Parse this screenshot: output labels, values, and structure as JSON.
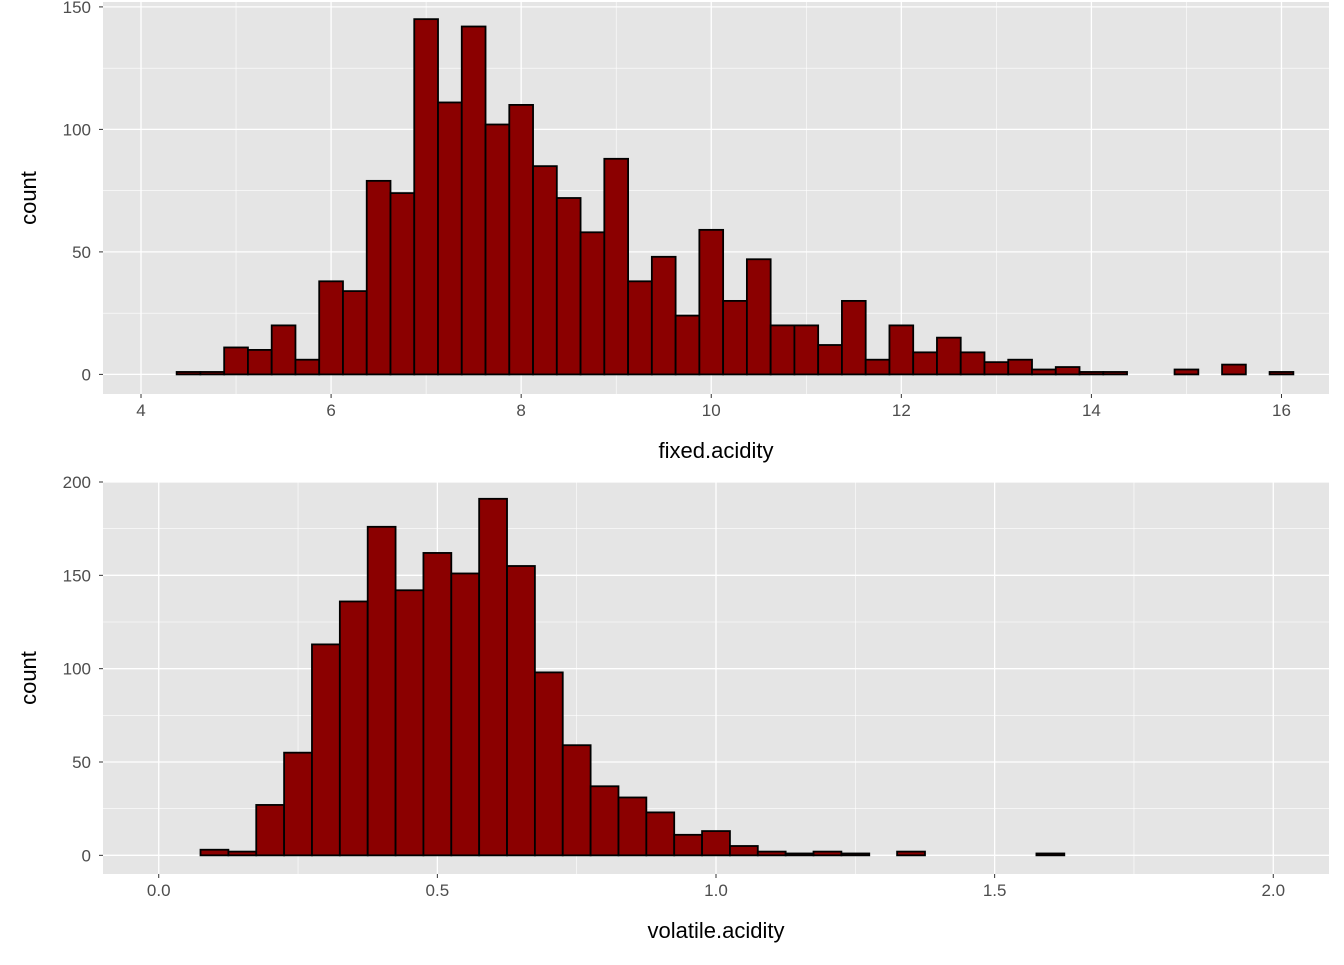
{
  "chart_data": [
    {
      "type": "bar",
      "title": "",
      "xlabel": "fixed.acidity",
      "ylabel": "count",
      "binwidth": 0.25,
      "bin_start": 4.375,
      "xlim": [
        3.6,
        16.5
      ],
      "ylim": [
        -8,
        152
      ],
      "xticks": [
        4,
        6,
        8,
        10,
        12,
        14,
        16
      ],
      "xtick_labels": [
        "4",
        "6",
        "8",
        "10",
        "12",
        "14",
        "16"
      ],
      "yticks": [
        0,
        50,
        100,
        150
      ],
      "ytick_labels": [
        "0",
        "50",
        "100",
        "150"
      ],
      "values": [
        1,
        1,
        11,
        10,
        20,
        6,
        38,
        34,
        79,
        74,
        145,
        111,
        142,
        102,
        110,
        85,
        72,
        58,
        88,
        38,
        48,
        24,
        59,
        30,
        47,
        20,
        20,
        12,
        30,
        6,
        20,
        9,
        15,
        9,
        5,
        6,
        2,
        3,
        1,
        1,
        0,
        0,
        2,
        0,
        4,
        0,
        1
      ]
    },
    {
      "type": "bar",
      "title": "",
      "xlabel": "volatile.acidity",
      "ylabel": "count",
      "binwidth": 0.05,
      "bin_start": 0.075,
      "xlim": [
        -0.1,
        2.1
      ],
      "ylim": [
        -10,
        200
      ],
      "xticks": [
        0.0,
        0.5,
        1.0,
        1.5,
        2.0
      ],
      "xtick_labels": [
        "0.0",
        "0.5",
        "1.0",
        "1.5",
        "2.0"
      ],
      "yticks": [
        0,
        50,
        100,
        150,
        200
      ],
      "ytick_labels": [
        "0",
        "50",
        "100",
        "150",
        "200"
      ],
      "values": [
        3,
        2,
        27,
        55,
        113,
        136,
        176,
        142,
        162,
        151,
        191,
        155,
        98,
        59,
        37,
        31,
        23,
        11,
        13,
        5,
        2,
        1,
        2,
        1,
        0,
        2,
        0,
        0,
        0,
        0,
        1
      ]
    }
  ],
  "colors": {
    "panel": "#e5e5e5",
    "grid": "#ffffff",
    "bar_fill": "#8b0000",
    "bar_stroke": "#000000",
    "axis_text": "#4d4d4d"
  }
}
